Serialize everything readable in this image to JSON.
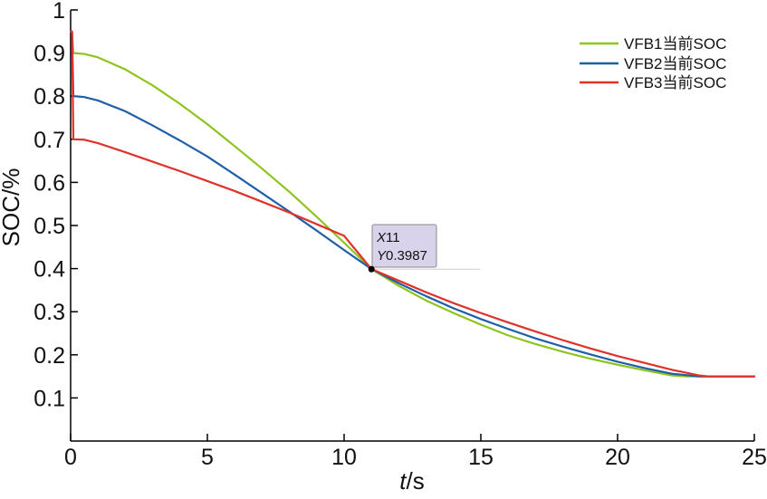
{
  "chart_data": {
    "type": "line",
    "title": "",
    "xlabel": {
      "italic": "t",
      "rest": "/s"
    },
    "ylabel": "SOC/%",
    "xlim": [
      0,
      25
    ],
    "ylim": [
      0,
      1
    ],
    "x_ticks": [
      0,
      5,
      10,
      15,
      20,
      25
    ],
    "y_ticks": [
      0.1,
      0.2,
      0.3,
      0.4,
      0.5,
      0.6,
      0.7,
      0.8,
      0.9,
      1
    ],
    "x_tick_labels": [
      "0",
      "5",
      "10",
      "15",
      "20",
      "25"
    ],
    "y_tick_labels": [
      "0.1",
      "0.2",
      "0.3",
      "0.4",
      "0.5",
      "0.6",
      "0.7",
      "0.8",
      "0.9",
      "1"
    ],
    "grid": false,
    "legend_position": "top-right",
    "series": [
      {
        "name": "VFB1当前SOC",
        "color": "#8fc31f",
        "x": [
          0,
          0.05,
          0.1,
          0.5,
          1,
          2,
          3,
          4,
          5,
          6,
          7,
          8,
          9,
          10,
          11,
          12,
          13,
          14,
          15,
          16,
          17,
          18,
          19,
          20,
          21,
          22,
          22.5,
          25
        ],
        "y": [
          0.95,
          0.95,
          0.9,
          0.898,
          0.89,
          0.862,
          0.825,
          0.782,
          0.735,
          0.684,
          0.632,
          0.578,
          0.52,
          0.46,
          0.399,
          0.36,
          0.326,
          0.297,
          0.27,
          0.245,
          0.225,
          0.207,
          0.191,
          0.177,
          0.164,
          0.152,
          0.15,
          0.15
        ]
      },
      {
        "name": "VFB2当前SOC",
        "color": "#1f5fa8",
        "x": [
          0,
          0.05,
          0.1,
          0.5,
          1,
          2,
          3,
          4,
          5,
          6,
          7,
          8,
          9,
          10,
          11,
          12,
          13,
          14,
          15,
          16,
          17,
          18,
          19,
          20,
          21,
          22,
          23,
          25
        ],
        "y": [
          0.95,
          0.95,
          0.8,
          0.798,
          0.79,
          0.765,
          0.732,
          0.697,
          0.66,
          0.618,
          0.575,
          0.532,
          0.488,
          0.443,
          0.399,
          0.366,
          0.336,
          0.308,
          0.283,
          0.26,
          0.238,
          0.219,
          0.201,
          0.184,
          0.169,
          0.156,
          0.15,
          0.15
        ]
      },
      {
        "name": "VFB3当前SOC",
        "color": "#e0312b",
        "x": [
          0,
          0.05,
          0.1,
          0.5,
          1,
          2,
          3,
          4,
          5,
          6,
          7,
          8,
          9,
          10,
          11,
          12,
          13,
          14,
          15,
          16,
          17,
          18,
          19,
          20,
          21,
          22,
          23,
          23.3,
          25
        ],
        "y": [
          0.95,
          0.95,
          0.7,
          0.699,
          0.691,
          0.67,
          0.648,
          0.626,
          0.603,
          0.58,
          0.555,
          0.53,
          0.503,
          0.476,
          0.399,
          0.372,
          0.345,
          0.32,
          0.297,
          0.275,
          0.254,
          0.234,
          0.215,
          0.197,
          0.181,
          0.165,
          0.152,
          0.15,
          0.15
        ]
      }
    ],
    "datatip": {
      "x_label": "X",
      "x_value": "11",
      "y_label": "Y",
      "y_value": "0.3987",
      "x": 11,
      "y": 0.3987
    }
  }
}
